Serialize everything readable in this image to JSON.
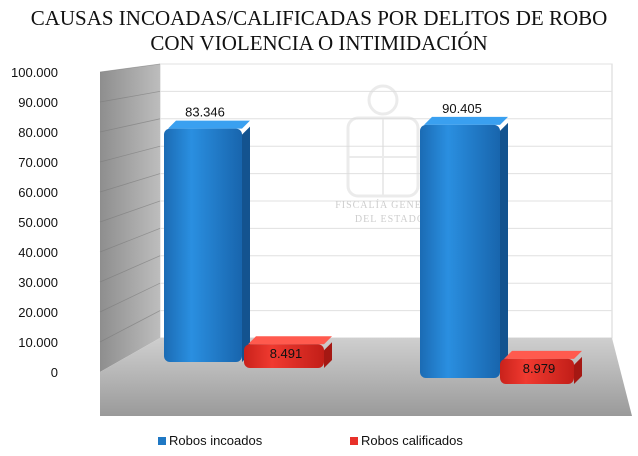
{
  "chart_data": {
    "type": "bar",
    "title_lines": [
      "CAUSAS INCOADAS/CALIFICADAS POR DELITOS DE ROBO",
      "CON VIOLENCIA O INTIMIDACIÓN"
    ],
    "categories": [
      "",
      ""
    ],
    "series": [
      {
        "name": "Robos incoados",
        "values": [
          83346,
          90405
        ],
        "labels": [
          "83.346",
          "90.405"
        ],
        "color": "#1f78c4"
      },
      {
        "name": "Robos calificados",
        "values": [
          8491,
          8979
        ],
        "labels": [
          "8.491",
          "8.979"
        ],
        "color": "#e8312a"
      }
    ],
    "ylim": [
      0,
      100000
    ],
    "yticks": [
      "0",
      "10.000",
      "20.000",
      "30.000",
      "40.000",
      "50.000",
      "60.000",
      "70.000",
      "80.000",
      "90.000",
      "100.000"
    ],
    "grid": true,
    "legend": "bottom",
    "watermark": [
      "FISCALÍA GENERAL",
      "DEL ESTADO"
    ]
  }
}
